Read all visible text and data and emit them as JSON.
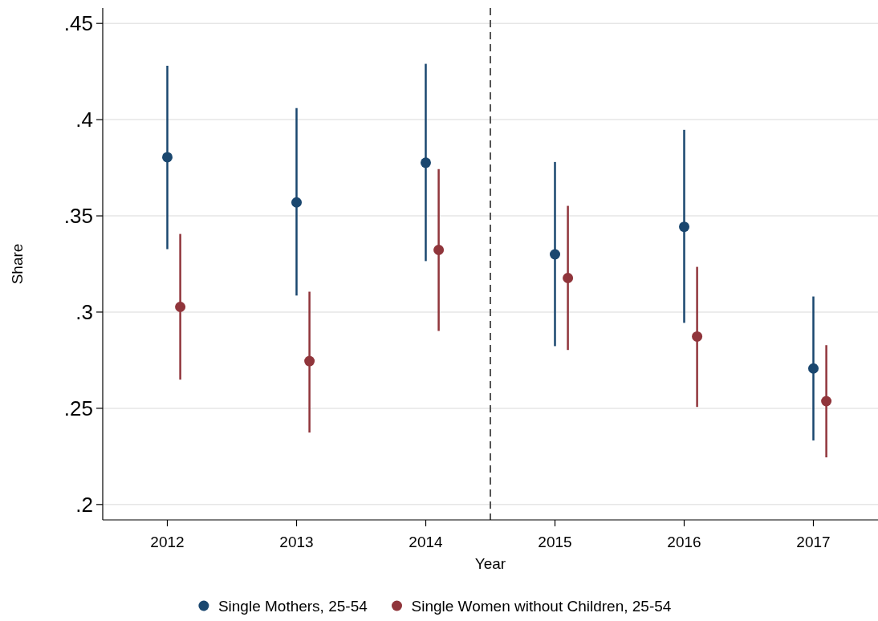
{
  "chart_data": {
    "type": "scatter",
    "xlabel": "Year",
    "ylabel": "Share",
    "xlim": [
      2011.5,
      2017.5
    ],
    "xticks": [
      2012,
      2013,
      2014,
      2015,
      2016,
      2017
    ],
    "ylim": [
      0.192,
      0.458
    ],
    "yticks": [
      {
        "value": 0.2,
        "label": ".2"
      },
      {
        "value": 0.25,
        "label": ".25"
      },
      {
        "value": 0.3,
        "label": ".3"
      },
      {
        "value": 0.35,
        "label": ".35"
      },
      {
        "value": 0.4,
        "label": ".4"
      },
      {
        "value": 0.45,
        "label": ".45"
      }
    ],
    "grid": "y",
    "legend": "bottom",
    "marker": "circle",
    "ref_lines": [
      {
        "axis": "x",
        "value": 2014.5,
        "color": "#555555",
        "line_style": "dashed"
      }
    ],
    "series": [
      {
        "name": "Single Mothers, 25-54",
        "color": "#1a476f",
        "x": [
          2012,
          2013,
          2014,
          2015,
          2016,
          2017
        ],
        "values": [
          0.3805,
          0.357,
          0.3776,
          0.33,
          0.3443,
          0.2707
        ],
        "errors": [
          [
            0.3327,
            0.428
          ],
          [
            0.3086,
            0.406
          ],
          [
            0.3265,
            0.429
          ],
          [
            0.2823,
            0.378
          ],
          [
            0.2944,
            0.3947
          ],
          [
            0.2333,
            0.3081
          ]
        ]
      },
      {
        "name": "Single Women without Children, 25-54",
        "color": "#90353b",
        "x": [
          2012.1,
          2013.1,
          2014.1,
          2015.1,
          2016.1,
          2017.1
        ],
        "values": [
          0.3027,
          0.2745,
          0.3323,
          0.3177,
          0.2873,
          0.2537
        ],
        "errors": [
          [
            0.2649,
            0.3406
          ],
          [
            0.2374,
            0.3106
          ],
          [
            0.2902,
            0.3743
          ],
          [
            0.2803,
            0.3552
          ],
          [
            0.2507,
            0.3235
          ],
          [
            0.2245,
            0.2828
          ]
        ]
      }
    ]
  }
}
